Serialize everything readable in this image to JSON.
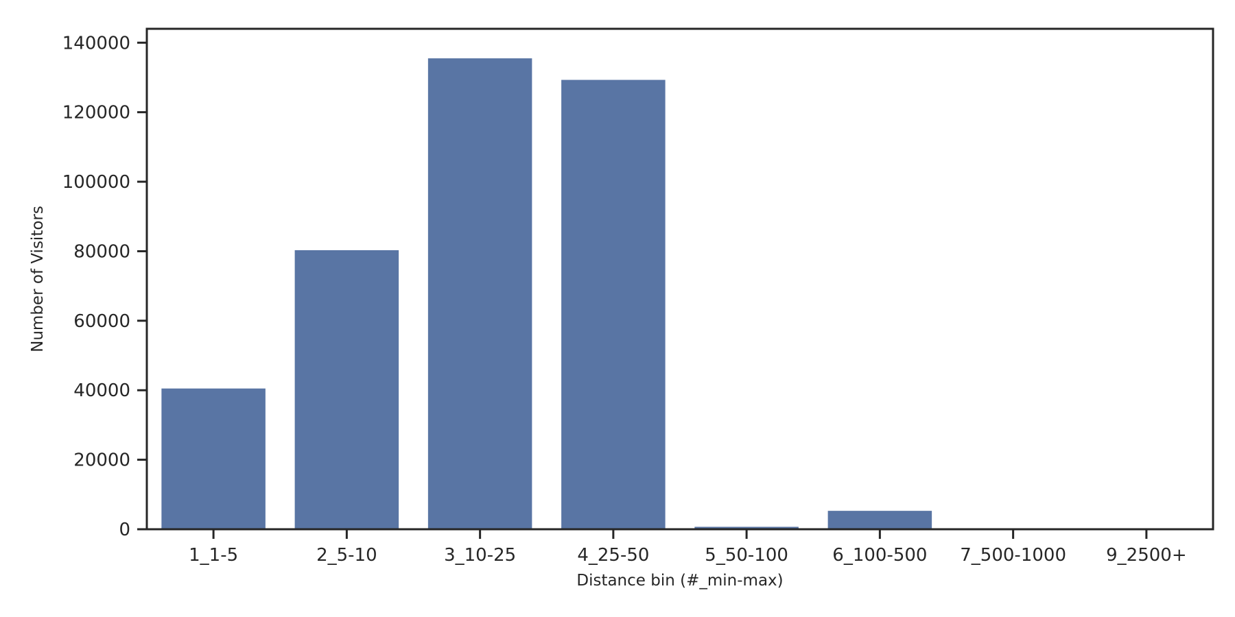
{
  "chart_data": {
    "type": "bar",
    "categories": [
      "1_1-5",
      "2_5-10",
      "3_10-25",
      "4_25-50",
      "5_50-100",
      "6_100-500",
      "7_500-1000",
      "9_2500+"
    ],
    "values": [
      40500,
      80300,
      135500,
      129300,
      700,
      5300,
      0,
      0
    ],
    "xlabel": "Distance bin (#_min-max)",
    "ylabel": "Number of Visitors",
    "ylim": [
      0,
      144000
    ],
    "yticks": [
      0,
      20000,
      40000,
      60000,
      80000,
      100000,
      120000,
      140000
    ],
    "grid": false,
    "bar_color": "#5975a4"
  }
}
